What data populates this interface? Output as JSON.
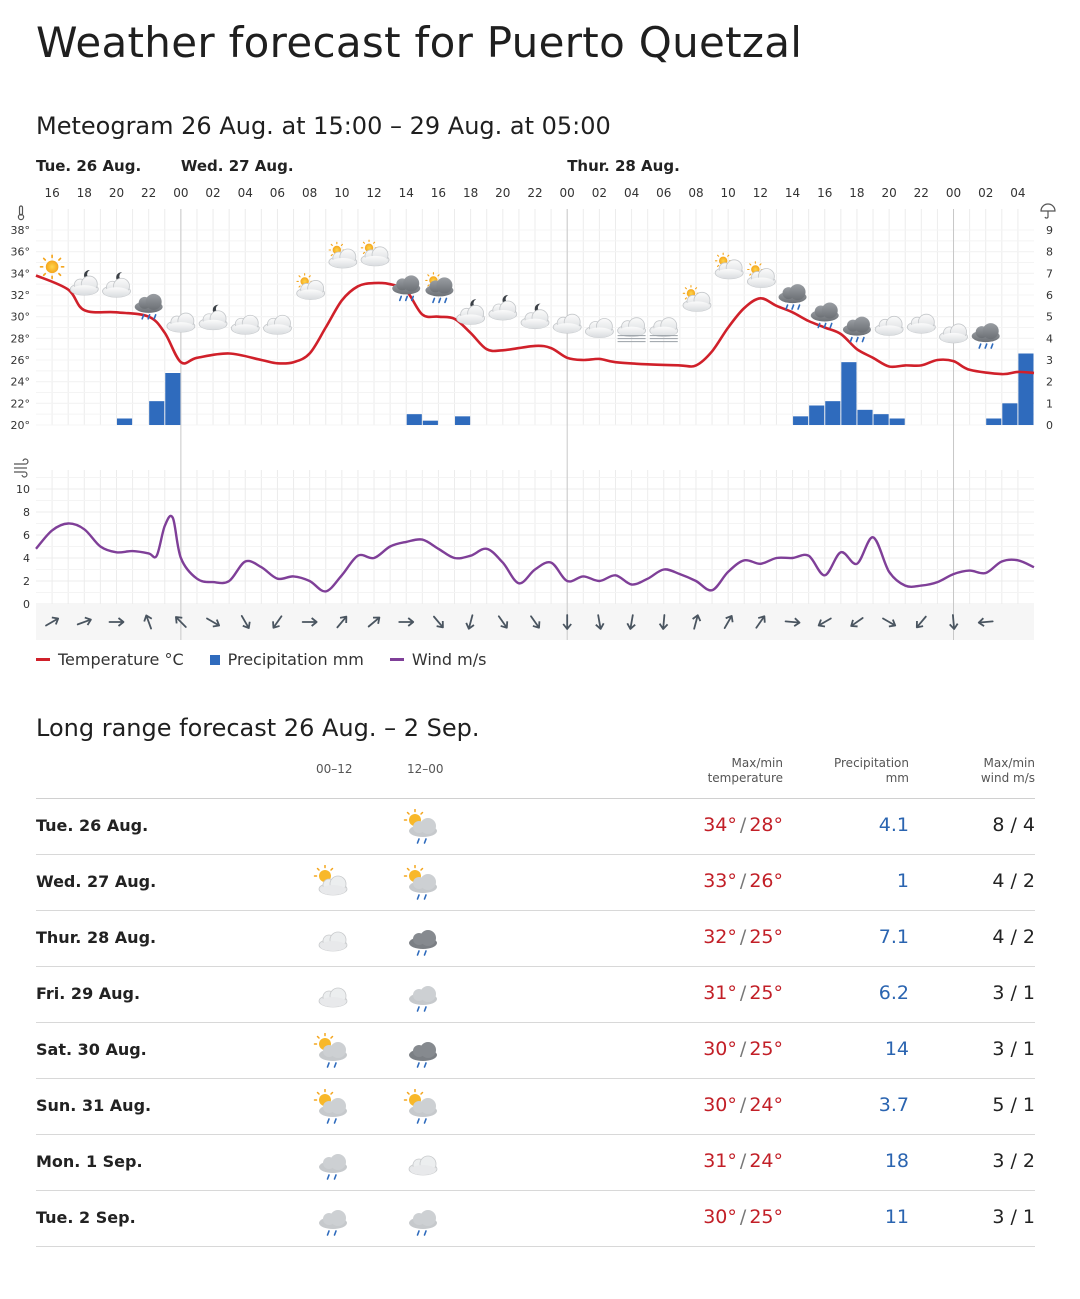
{
  "page": {
    "title": "Weather forecast for Puerto Quetzal",
    "meteogram_title": "Meteogram 26 Aug. at 15:00 – 29 Aug. at 05:00",
    "long_range_title": "Long range forecast 26 Aug. – 2 Sep."
  },
  "colors": {
    "temperature": "#d0202a",
    "precipitation": "#2f6bbd",
    "wind": "#7f3f98",
    "grid": "#ececec",
    "day_divider": "#c8c8c8"
  },
  "chart_data": {
    "type": "line",
    "days": [
      {
        "label": "Tue. 26 Aug.",
        "hour": 15
      },
      {
        "label": "Wed. 27 Aug.",
        "hour": 24
      },
      {
        "label": "Thur. 28 Aug.",
        "hour": 48
      }
    ],
    "hour_ticks": [
      {
        "h": 16,
        "label": "16"
      },
      {
        "h": 18,
        "label": "18"
      },
      {
        "h": 20,
        "label": "20"
      },
      {
        "h": 22,
        "label": "22"
      },
      {
        "h": 24,
        "label": "00"
      },
      {
        "h": 26,
        "label": "02"
      },
      {
        "h": 28,
        "label": "04"
      },
      {
        "h": 30,
        "label": "06"
      },
      {
        "h": 32,
        "label": "08"
      },
      {
        "h": 34,
        "label": "10"
      },
      {
        "h": 36,
        "label": "12"
      },
      {
        "h": 38,
        "label": "14"
      },
      {
        "h": 40,
        "label": "16"
      },
      {
        "h": 42,
        "label": "18"
      },
      {
        "h": 44,
        "label": "20"
      },
      {
        "h": 46,
        "label": "22"
      },
      {
        "h": 48,
        "label": "00"
      },
      {
        "h": 50,
        "label": "02"
      },
      {
        "h": 52,
        "label": "04"
      },
      {
        "h": 54,
        "label": "06"
      },
      {
        "h": 56,
        "label": "08"
      },
      {
        "h": 58,
        "label": "10"
      },
      {
        "h": 60,
        "label": "12"
      },
      {
        "h": 62,
        "label": "14"
      },
      {
        "h": 64,
        "label": "16"
      },
      {
        "h": 66,
        "label": "18"
      },
      {
        "h": 68,
        "label": "20"
      },
      {
        "h": 70,
        "label": "22"
      },
      {
        "h": 72,
        "label": "00"
      },
      {
        "h": 74,
        "label": "02"
      },
      {
        "h": 76,
        "label": "04"
      }
    ],
    "temp_axis": {
      "min": 20,
      "max": 38,
      "ticks": [
        "20°",
        "22°",
        "24°",
        "26°",
        "28°",
        "30°",
        "32°",
        "34°",
        "36°",
        "38°"
      ]
    },
    "precip_axis": {
      "min": 0,
      "max": 9,
      "ticks": [
        "0",
        "1",
        "2",
        "3",
        "4",
        "5",
        "6",
        "7",
        "8",
        "9"
      ]
    },
    "wind_axis": {
      "min": 0,
      "max": 10,
      "ticks": [
        "0",
        "2",
        "4",
        "6",
        "8",
        "10"
      ]
    },
    "temperature": {
      "name": "Temperature °C",
      "points": [
        [
          15,
          33.8
        ],
        [
          17,
          32.5
        ],
        [
          18,
          30.6
        ],
        [
          20,
          30.4
        ],
        [
          22,
          30.0
        ],
        [
          23,
          28.5
        ],
        [
          24,
          25.8
        ],
        [
          25,
          26.2
        ],
        [
          27,
          26.6
        ],
        [
          29,
          26.0
        ],
        [
          30,
          25.7
        ],
        [
          31,
          25.8
        ],
        [
          32,
          26.6
        ],
        [
          33,
          29.0
        ],
        [
          34,
          31.5
        ],
        [
          35,
          32.8
        ],
        [
          36,
          33.1
        ],
        [
          37,
          33.0
        ],
        [
          38,
          32.4
        ],
        [
          39,
          30.2
        ],
        [
          40,
          30.0
        ],
        [
          41,
          29.8
        ],
        [
          42,
          28.5
        ],
        [
          43,
          27.0
        ],
        [
          44,
          26.9
        ],
        [
          46,
          27.3
        ],
        [
          47,
          27.1
        ],
        [
          48,
          26.2
        ],
        [
          49,
          26.0
        ],
        [
          50,
          26.1
        ],
        [
          51,
          25.8
        ],
        [
          53,
          25.6
        ],
        [
          55,
          25.5
        ],
        [
          56,
          25.5
        ],
        [
          57,
          26.8
        ],
        [
          58,
          29.0
        ],
        [
          59,
          30.8
        ],
        [
          60,
          31.7
        ],
        [
          61,
          31.0
        ],
        [
          62,
          30.4
        ],
        [
          63,
          29.6
        ],
        [
          64,
          29.0
        ],
        [
          65,
          28.4
        ],
        [
          66,
          27.0
        ],
        [
          67,
          26.2
        ],
        [
          68,
          25.4
        ],
        [
          69,
          25.5
        ],
        [
          70,
          25.5
        ],
        [
          71,
          26.0
        ],
        [
          72,
          25.9
        ],
        [
          73,
          25.1
        ],
        [
          75,
          24.7
        ],
        [
          76,
          24.9
        ],
        [
          77,
          24.8
        ]
      ]
    },
    "precipitation": {
      "name": "Precipitation mm",
      "bars": [
        [
          20,
          0.3
        ],
        [
          22,
          1.1
        ],
        [
          23,
          2.4
        ],
        [
          38,
          0.5
        ],
        [
          39,
          0.2
        ],
        [
          41,
          0.4
        ],
        [
          62,
          0.4
        ],
        [
          63,
          0.9
        ],
        [
          64,
          1.1
        ],
        [
          65,
          2.9
        ],
        [
          66,
          0.7
        ],
        [
          67,
          0.5
        ],
        [
          68,
          0.3
        ],
        [
          74,
          0.3
        ],
        [
          75,
          1.0
        ],
        [
          76,
          3.3
        ]
      ]
    },
    "wind": {
      "name": "Wind m/s",
      "points": [
        [
          15,
          4.8
        ],
        [
          16,
          6.4
        ],
        [
          17,
          7.0
        ],
        [
          18,
          6.5
        ],
        [
          19,
          5.0
        ],
        [
          20,
          4.5
        ],
        [
          21,
          4.6
        ],
        [
          22,
          4.4
        ],
        [
          22.5,
          4.2
        ],
        [
          23,
          6.8
        ],
        [
          23.5,
          7.5
        ],
        [
          24,
          4.0
        ],
        [
          25,
          2.2
        ],
        [
          26,
          1.9
        ],
        [
          27,
          2.0
        ],
        [
          28,
          3.7
        ],
        [
          29,
          3.2
        ],
        [
          30,
          2.2
        ],
        [
          31,
          2.4
        ],
        [
          32,
          2.0
        ],
        [
          33,
          1.1
        ],
        [
          34,
          2.5
        ],
        [
          35,
          4.2
        ],
        [
          36,
          4.0
        ],
        [
          37,
          5.0
        ],
        [
          38,
          5.4
        ],
        [
          39,
          5.6
        ],
        [
          40,
          4.8
        ],
        [
          41,
          4.0
        ],
        [
          42,
          4.2
        ],
        [
          43,
          4.8
        ],
        [
          44,
          3.6
        ],
        [
          45,
          1.8
        ],
        [
          46,
          3.0
        ],
        [
          47,
          3.6
        ],
        [
          48,
          2.0
        ],
        [
          49,
          2.4
        ],
        [
          50,
          2.0
        ],
        [
          51,
          2.5
        ],
        [
          52,
          1.7
        ],
        [
          53,
          2.2
        ],
        [
          54,
          3.0
        ],
        [
          55,
          2.6
        ],
        [
          56,
          2.0
        ],
        [
          57,
          1.2
        ],
        [
          58,
          2.8
        ],
        [
          59,
          3.8
        ],
        [
          60,
          3.5
        ],
        [
          61,
          4.0
        ],
        [
          62,
          4.0
        ],
        [
          63,
          4.2
        ],
        [
          64,
          2.5
        ],
        [
          65,
          4.5
        ],
        [
          66,
          3.5
        ],
        [
          67,
          5.8
        ],
        [
          68,
          2.8
        ],
        [
          69,
          1.6
        ],
        [
          70,
          1.6
        ],
        [
          71,
          1.9
        ],
        [
          72,
          2.6
        ],
        [
          73,
          2.9
        ],
        [
          74,
          2.7
        ],
        [
          75,
          3.7
        ],
        [
          76,
          3.8
        ],
        [
          77,
          3.2
        ]
      ]
    },
    "weather_icons": [
      {
        "h": 16,
        "type": "sun",
        "temp": 34.6
      },
      {
        "h": 18,
        "type": "moon-cloud",
        "temp": 33.1
      },
      {
        "h": 20,
        "type": "moon-cloud",
        "temp": 32.9
      },
      {
        "h": 22,
        "type": "rain",
        "temp": 31.0
      },
      {
        "h": 24,
        "type": "cloud",
        "temp": 29.5
      },
      {
        "h": 26,
        "type": "moon-cloud",
        "temp": 29.9
      },
      {
        "h": 28,
        "type": "cloud",
        "temp": 29.3
      },
      {
        "h": 30,
        "type": "cloud",
        "temp": 29.3
      },
      {
        "h": 32,
        "type": "sun-cloud",
        "temp": 32.7
      },
      {
        "h": 34,
        "type": "sun-cloud",
        "temp": 35.6
      },
      {
        "h": 36,
        "type": "sun-cloud",
        "temp": 35.8
      },
      {
        "h": 38,
        "type": "rain",
        "temp": 32.7
      },
      {
        "h": 40,
        "type": "sun-rain",
        "temp": 32.7
      },
      {
        "h": 42,
        "type": "moon-cloud",
        "temp": 30.4
      },
      {
        "h": 44,
        "type": "moon-cloud",
        "temp": 30.8
      },
      {
        "h": 46,
        "type": "moon-cloud",
        "temp": 30.0
      },
      {
        "h": 48,
        "type": "cloud",
        "temp": 29.4
      },
      {
        "h": 50,
        "type": "cloud",
        "temp": 29.0
      },
      {
        "h": 52,
        "type": "fog",
        "temp": 28.8
      },
      {
        "h": 54,
        "type": "fog",
        "temp": 28.8
      },
      {
        "h": 56,
        "type": "sun-cloud",
        "temp": 31.6
      },
      {
        "h": 58,
        "type": "sun-cloud",
        "temp": 34.6
      },
      {
        "h": 60,
        "type": "sun-cloud",
        "temp": 33.8
      },
      {
        "h": 62,
        "type": "rain",
        "temp": 31.9
      },
      {
        "h": 64,
        "type": "rain",
        "temp": 30.2
      },
      {
        "h": 66,
        "type": "rain",
        "temp": 28.9
      },
      {
        "h": 68,
        "type": "cloud",
        "temp": 29.2
      },
      {
        "h": 70,
        "type": "cloud",
        "temp": 29.4
      },
      {
        "h": 72,
        "type": "cloud",
        "temp": 28.5
      },
      {
        "h": 74,
        "type": "rain",
        "temp": 28.3
      }
    ],
    "wind_direction_deg": [
      {
        "h": 16,
        "deg": 60
      },
      {
        "h": 18,
        "deg": 70
      },
      {
        "h": 20,
        "deg": 90
      },
      {
        "h": 22,
        "deg": -20
      },
      {
        "h": 24,
        "deg": -45
      },
      {
        "h": 26,
        "deg": 120
      },
      {
        "h": 28,
        "deg": 150
      },
      {
        "h": 30,
        "deg": 215
      },
      {
        "h": 32,
        "deg": 90
      },
      {
        "h": 34,
        "deg": 40
      },
      {
        "h": 36,
        "deg": 50
      },
      {
        "h": 38,
        "deg": 90
      },
      {
        "h": 40,
        "deg": 140
      },
      {
        "h": 42,
        "deg": 195
      },
      {
        "h": 44,
        "deg": 145
      },
      {
        "h": 46,
        "deg": 145
      },
      {
        "h": 48,
        "deg": 180
      },
      {
        "h": 50,
        "deg": 170
      },
      {
        "h": 52,
        "deg": 190
      },
      {
        "h": 54,
        "deg": 185
      },
      {
        "h": 56,
        "deg": 15
      },
      {
        "h": 58,
        "deg": 30
      },
      {
        "h": 60,
        "deg": 35
      },
      {
        "h": 62,
        "deg": 95
      },
      {
        "h": 64,
        "deg": 240
      },
      {
        "h": 66,
        "deg": 235
      },
      {
        "h": 68,
        "deg": 120
      },
      {
        "h": 70,
        "deg": 220
      },
      {
        "h": 72,
        "deg": 175
      },
      {
        "h": 74,
        "deg": 265
      }
    ]
  },
  "legend": {
    "temperature": "Temperature °C",
    "precipitation": "Precipitation mm",
    "wind": "Wind m/s"
  },
  "table": {
    "headers": {
      "night": "00–12",
      "day": "12–00",
      "temp_1": "Max/min",
      "temp_2": "temperature",
      "precip_1": "Precipitation",
      "precip_2": "mm",
      "wind_1": "Max/min",
      "wind_2": "wind m/s"
    },
    "rows": [
      {
        "day": "Tue. 26 Aug.",
        "night": "",
        "dayicon": "sun-rain",
        "max": "34°",
        "min": "28°",
        "precip": "4.1",
        "wind": "8 / 4"
      },
      {
        "day": "Wed. 27 Aug.",
        "night": "sun-cloud",
        "dayicon": "sun-rain",
        "max": "33°",
        "min": "26°",
        "precip": "1",
        "wind": "4 / 2"
      },
      {
        "day": "Thur. 28 Aug.",
        "night": "cloud",
        "dayicon": "rain-dark",
        "max": "32°",
        "min": "25°",
        "precip": "7.1",
        "wind": "4 / 2"
      },
      {
        "day": "Fri. 29 Aug.",
        "night": "cloud",
        "dayicon": "rain",
        "max": "31°",
        "min": "25°",
        "precip": "6.2",
        "wind": "3 / 1"
      },
      {
        "day": "Sat. 30 Aug.",
        "night": "sun-rain",
        "dayicon": "rain-dark",
        "max": "30°",
        "min": "25°",
        "precip": "14",
        "wind": "3 / 1"
      },
      {
        "day": "Sun. 31 Aug.",
        "night": "sun-rain",
        "dayicon": "sun-rain",
        "max": "30°",
        "min": "24°",
        "precip": "3.7",
        "wind": "5 / 1"
      },
      {
        "day": "Mon. 1 Sep.",
        "night": "rain",
        "dayicon": "cloud",
        "max": "31°",
        "min": "24°",
        "precip": "18",
        "wind": "3 / 2"
      },
      {
        "day": "Tue. 2 Sep.",
        "night": "rain",
        "dayicon": "rain",
        "max": "30°",
        "min": "25°",
        "precip": "11",
        "wind": "3 / 1"
      }
    ]
  }
}
